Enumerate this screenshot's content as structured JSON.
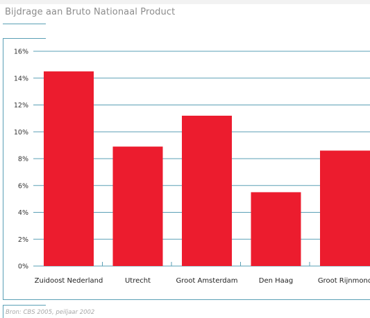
{
  "header": {
    "title": "Bijdrage aan Bruto Nationaal Product"
  },
  "footer": {
    "source": "Bron: CBS 2005, peiljaar 2002"
  },
  "colors": {
    "bar": "#ec1c2e",
    "gridline": "#5a9fb5",
    "frame": "#5a9fb5"
  },
  "chart_data": {
    "type": "bar",
    "title": "Bijdrage aan Bruto Nationaal Product",
    "categories": [
      "Zuidoost Nederland",
      "Utrecht",
      "Groot Amsterdam",
      "Den Haag",
      "Groot Rijnmond"
    ],
    "values": [
      14.5,
      8.9,
      11.2,
      5.5,
      8.6
    ],
    "ylim": [
      0,
      16
    ],
    "yticks": [
      "0%",
      "2%",
      "4%",
      "6%",
      "8%",
      "10%",
      "12%",
      "14%",
      "16%"
    ],
    "ytick_values": [
      0,
      2,
      4,
      6,
      8,
      10,
      12,
      14,
      16
    ],
    "grid": true,
    "xlabel": "",
    "ylabel": ""
  }
}
